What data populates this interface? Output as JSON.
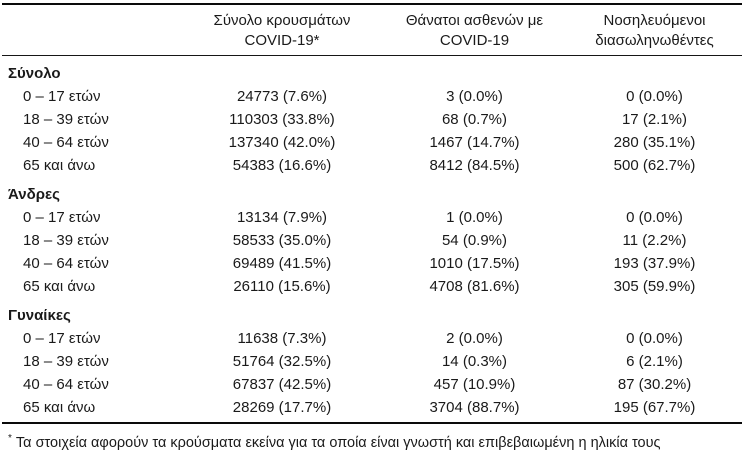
{
  "ink_color": "#1a1a1a",
  "table": {
    "columns": [
      {
        "line1": "Σύνολο κρουσμάτων",
        "line2": "COVID-19*"
      },
      {
        "line1": "Θάνατοι ασθενών με",
        "line2": "COVID-19"
      },
      {
        "line1": "Νοσηλευόμενοι",
        "line2": "διασωληνωθέντες"
      }
    ],
    "groups": [
      {
        "label": "Σύνολο",
        "rows": [
          {
            "age": "0 – 17 ετών",
            "cases": "24773 (7.6%)",
            "deaths": "3 (0.0%)",
            "intubated": "0 (0.0%)"
          },
          {
            "age": "18 – 39 ετών",
            "cases": "110303 (33.8%)",
            "deaths": "68 (0.7%)",
            "intubated": "17 (2.1%)"
          },
          {
            "age": "40 – 64 ετών",
            "cases": "137340 (42.0%)",
            "deaths": "1467 (14.7%)",
            "intubated": "280 (35.1%)"
          },
          {
            "age": "65 και άνω",
            "cases": "54383 (16.6%)",
            "deaths": "8412 (84.5%)",
            "intubated": "500 (62.7%)"
          }
        ]
      },
      {
        "label": "Άνδρες",
        "rows": [
          {
            "age": "0 – 17 ετών",
            "cases": "13134 (7.9%)",
            "deaths": "1 (0.0%)",
            "intubated": "0 (0.0%)"
          },
          {
            "age": "18 – 39 ετών",
            "cases": "58533 (35.0%)",
            "deaths": "54 (0.9%)",
            "intubated": "11 (2.2%)"
          },
          {
            "age": "40 – 64 ετών",
            "cases": "69489 (41.5%)",
            "deaths": "1010 (17.5%)",
            "intubated": "193 (37.9%)"
          },
          {
            "age": "65 και άνω",
            "cases": "26110 (15.6%)",
            "deaths": "4708 (81.6%)",
            "intubated": "305 (59.9%)"
          }
        ]
      },
      {
        "label": "Γυναίκες",
        "rows": [
          {
            "age": "0 – 17 ετών",
            "cases": "11638 (7.3%)",
            "deaths": "2 (0.0%)",
            "intubated": "0 (0.0%)"
          },
          {
            "age": "18 – 39 ετών",
            "cases": "51764 (32.5%)",
            "deaths": "14 (0.3%)",
            "intubated": "6 (2.1%)"
          },
          {
            "age": "40 – 64 ετών",
            "cases": "67837 (42.5%)",
            "deaths": "457 (10.9%)",
            "intubated": "87 (30.2%)"
          },
          {
            "age": "65 και άνω",
            "cases": "28269 (17.7%)",
            "deaths": "3704 (88.7%)",
            "intubated": "195 (67.7%)"
          }
        ]
      }
    ],
    "footnote": {
      "marker": "*",
      "text": "Τα στοιχεία αφορούν τα κρούσματα εκείνα για τα οποία είναι γνωστή και επιβεβαιωμένη η ηλικία τους"
    }
  }
}
